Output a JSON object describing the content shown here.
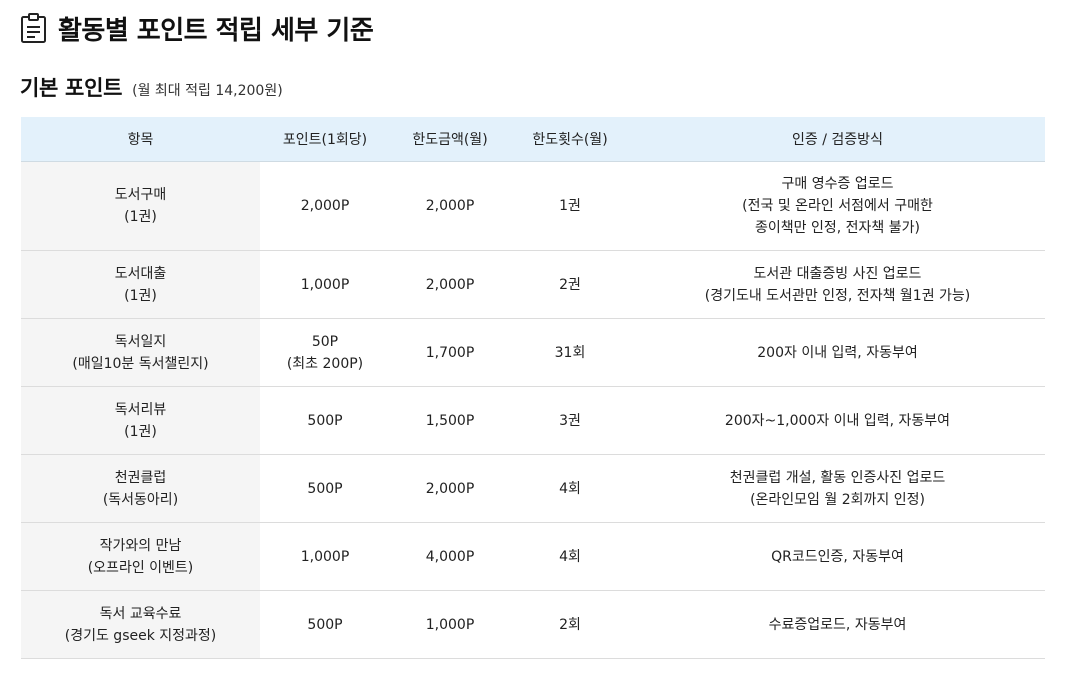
{
  "page": {
    "title": "활동별 포인트 적립 세부 기준",
    "icon": "document-icon"
  },
  "section": {
    "title": "기본 포인트",
    "note": "(월 최대 적립 14,200원)"
  },
  "table": {
    "headers": [
      "항목",
      "포인트(1회당)",
      "한도금액(월)",
      "한도횟수(월)",
      "인증 / 검증방식"
    ],
    "rows": [
      {
        "item": [
          "도서구매",
          "(1권)"
        ],
        "points": [
          "2,000P"
        ],
        "limit_amount": "2,000P",
        "limit_count": "1권",
        "verification": [
          "구매 영수증 업로드",
          "(전국 및 온라인 서점에서 구매한",
          "종이책만 인정, 전자책 불가)"
        ]
      },
      {
        "item": [
          "도서대출",
          "(1권)"
        ],
        "points": [
          "1,000P"
        ],
        "limit_amount": "2,000P",
        "limit_count": "2권",
        "verification": [
          "도서관 대출증빙 사진 업로드",
          "(경기도내 도서관만 인정, 전자책 월1권 가능)"
        ]
      },
      {
        "item": [
          "독서일지",
          "(매일10분 독서챌린지)"
        ],
        "points": [
          "50P",
          "(최초 200P)"
        ],
        "limit_amount": "1,700P",
        "limit_count": "31회",
        "verification": [
          "200자 이내 입력, 자동부여"
        ]
      },
      {
        "item": [
          "독서리뷰",
          "(1권)"
        ],
        "points": [
          "500P"
        ],
        "limit_amount": "1,500P",
        "limit_count": "3권",
        "verification": [
          "200자~1,000자 이내 입력, 자동부여"
        ]
      },
      {
        "item": [
          "천권클럽",
          "(독서동아리)"
        ],
        "points": [
          "500P"
        ],
        "limit_amount": "2,000P",
        "limit_count": "4회",
        "verification": [
          "천권클럽 개설, 활동 인증사진 업로드",
          "(온라인모임 월 2회까지 인정)"
        ]
      },
      {
        "item": [
          "작가와의 만남",
          "(오프라인 이벤트)"
        ],
        "points": [
          "1,000P"
        ],
        "limit_amount": "4,000P",
        "limit_count": "4회",
        "verification": [
          "QR코드인증, 자동부여"
        ]
      },
      {
        "item": [
          "독서 교육수료",
          "(경기도 gseek 지정과정)"
        ],
        "points": [
          "500P"
        ],
        "limit_amount": "1,000P",
        "limit_count": "2회",
        "verification": [
          "수료증업로드, 자동부여"
        ]
      }
    ]
  },
  "colors": {
    "header_bg": "#e3f1fb",
    "item_bg": "#f5f5f5",
    "border": "#dcdcdc"
  }
}
